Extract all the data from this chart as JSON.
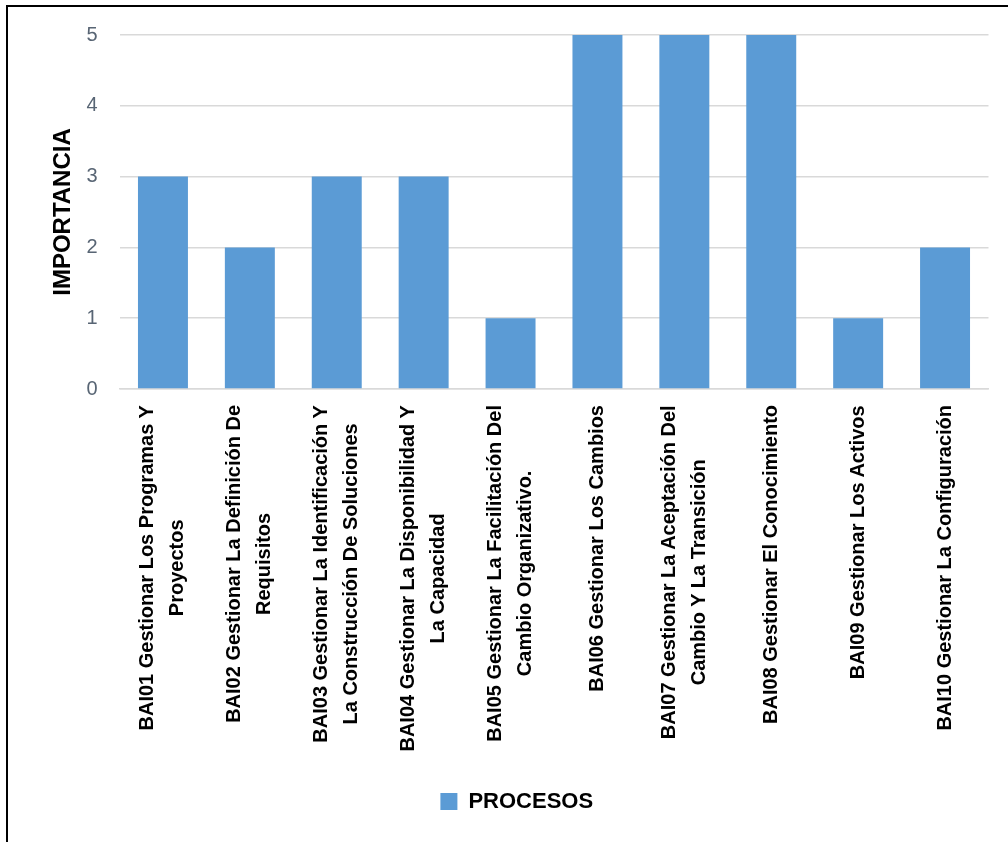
{
  "chart_data": {
    "type": "bar",
    "ylabel": "IMPORTANCIA",
    "categories": [
      "BAI01 Gestionar Los Programas Y Proyectos",
      "BAI02 Gestionar La Definición De Requisitos",
      "BAI03 Gestionar La Identificación Y La Construcción De Soluciones",
      "BAI04 Gestionar La Disponibilidad Y La Capacidad",
      "BAI05 Gestionar La Facilitación Del Cambio Organizativo.",
      "BAI06 Gestionar Los Cambios",
      "BAI07 Gestionar La Aceptación Del Cambio Y La Transición",
      "BAI08 Gestionar El Conocimiento",
      "BAI09 Gestionar Los Activos",
      "BAI10 Gestionar La Configuración"
    ],
    "series": [
      {
        "name": "PROCESOS",
        "color": "#5b9bd5",
        "values": [
          3,
          2,
          3,
          3,
          1,
          5,
          5,
          5,
          1,
          2
        ]
      }
    ],
    "ylim": [
      0,
      5
    ],
    "yticks": [
      0,
      1,
      2,
      3,
      4,
      5
    ],
    "grid": "y",
    "legend": "bottom"
  }
}
